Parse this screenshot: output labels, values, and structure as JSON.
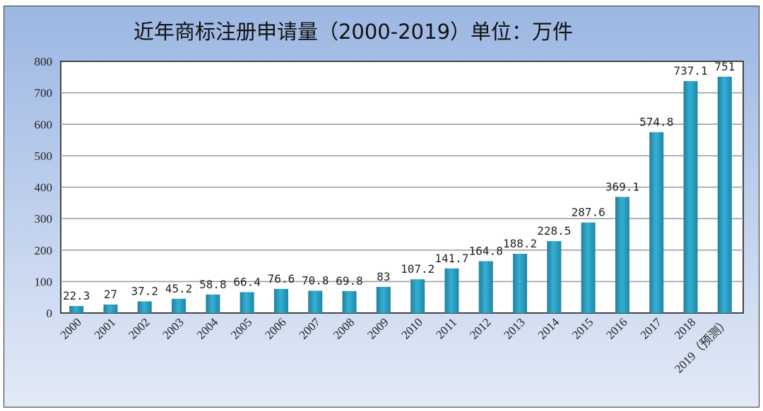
{
  "chart_data": {
    "type": "bar",
    "title": "近年商标注册申请量（2000-2019）单位：万件",
    "categories": [
      "2000",
      "2001",
      "2002",
      "2003",
      "2004",
      "2005",
      "2006",
      "2007",
      "2008",
      "2009",
      "2010",
      "2011",
      "2012",
      "2013",
      "2014",
      "2015",
      "2016",
      "2017",
      "2018",
      "2019（预测）"
    ],
    "values": [
      22.3,
      27,
      37.2,
      45.2,
      58.8,
      66.4,
      76.6,
      70.8,
      69.8,
      83,
      107.2,
      141.7,
      164.8,
      188.2,
      228.5,
      287.6,
      369.1,
      574.8,
      737.1,
      751
    ],
    "data_labels": [
      "22.3",
      "27",
      "37.2",
      "45.2",
      "58.8",
      "66.4",
      "76.6",
      "70.8",
      "69.8",
      "83",
      "107.2",
      "141.7",
      "164.8",
      "188.2",
      "228.5",
      "287.6",
      "369.1",
      "574.8",
      "737.1",
      "751"
    ],
    "ylim": [
      0,
      800
    ],
    "yticks": [
      "0",
      "100",
      "200",
      "300",
      "400",
      "500",
      "600",
      "700",
      "800"
    ],
    "grid": true,
    "xlabel": "",
    "ylabel": "",
    "colors": {
      "bar": "#2a9cc0",
      "background_top": "#9cb7e3",
      "background_bottom": "#e3eaf6"
    }
  }
}
